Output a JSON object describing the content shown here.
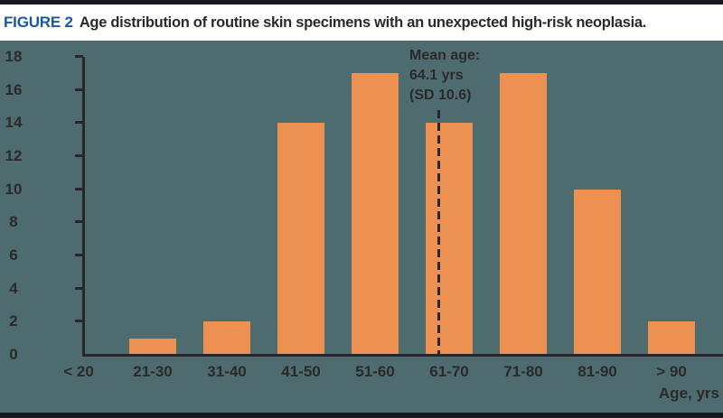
{
  "figure": {
    "label": "FIGURE 2",
    "caption": "Age distribution of routine skin specimens with an unexpected high-risk neoplasia."
  },
  "chart_data": {
    "type": "bar",
    "title": "FIGURE 2 Age distribution of routine skin specimens with an unexpected high-risk neoplasia.",
    "categories": [
      "< 20",
      "21-30",
      "31-40",
      "41-50",
      "51-60",
      "61-70",
      "71-80",
      "81-90",
      "> 90"
    ],
    "values": [
      0,
      1,
      2,
      14,
      17,
      14,
      17,
      10,
      2
    ],
    "xlabel": "Age, yrs",
    "ylabel": "",
    "ylim": [
      0,
      18
    ],
    "ytick_step": 2,
    "grid": false,
    "legend": false,
    "annotation": {
      "lines": [
        "Mean age:",
        "64.1 yrs",
        "(SD 10.6)"
      ],
      "mean": 64.1,
      "sd": 10.6,
      "target_category": "61-70",
      "style": "dashed-vertical-line"
    },
    "colors": {
      "bar": "#ED9152",
      "background": "#4E6B70",
      "axis": "#27262B",
      "text": "#2B2A29",
      "figure_label_blue": "#1A579D",
      "title_band": "#FFFFFF",
      "border_bar": "#171B20"
    }
  }
}
